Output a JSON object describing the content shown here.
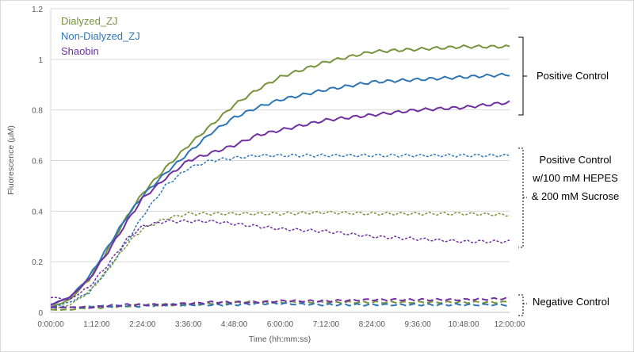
{
  "chart_data": {
    "type": "line",
    "title": "",
    "xlabel": "Time (hh:mm:ss)",
    "ylabel": "Fluorescence (µM)",
    "xlim_hours": [
      0,
      12
    ],
    "ylim": [
      0,
      1.2
    ],
    "x_tick_labels": [
      "0:00:00",
      "1:12:00",
      "2:24:00",
      "3:36:00",
      "4:48:00",
      "6:00:00",
      "7:12:00",
      "8:24:00",
      "9:36:00",
      "10:48:00",
      "12:00:00"
    ],
    "y_ticks": [
      0,
      0.2,
      0.4,
      0.6,
      0.8,
      1,
      1.2
    ],
    "y_tick_labels": [
      "0",
      "0.2",
      "0.4",
      "0.6",
      "0.8",
      "1",
      "1.2"
    ],
    "grid": "horizontal",
    "legend": {
      "placement": "top-left",
      "entries": [
        {
          "label": "Dialyzed_ZJ",
          "color": "#77933C"
        },
        {
          "label": "Non-Dialyzed_ZJ",
          "color": "#2E75B6"
        },
        {
          "label": "Shaobin",
          "color": "#7030A0"
        }
      ]
    },
    "x_hours": [
      0,
      0.5,
      1,
      1.5,
      2,
      2.4,
      3,
      3.6,
      4.2,
      4.8,
      5.4,
      6,
      7.2,
      8.4,
      9.6,
      10.8,
      12
    ],
    "series": [
      {
        "name": "Dialyzed_ZJ - Positive Control",
        "group": "positive",
        "style": "solid",
        "color": "#77933C",
        "values": [
          0.02,
          0.05,
          0.13,
          0.25,
          0.38,
          0.47,
          0.57,
          0.66,
          0.74,
          0.82,
          0.88,
          0.93,
          0.99,
          1.03,
          1.04,
          1.05,
          1.05
        ]
      },
      {
        "name": "Non-Dialyzed_ZJ - Positive Control",
        "group": "positive",
        "style": "solid",
        "color": "#2E75B6",
        "values": [
          0.03,
          0.06,
          0.14,
          0.26,
          0.38,
          0.46,
          0.55,
          0.63,
          0.71,
          0.77,
          0.81,
          0.84,
          0.88,
          0.91,
          0.92,
          0.93,
          0.94
        ]
      },
      {
        "name": "Shaobin - Positive Control",
        "group": "positive",
        "style": "solid",
        "color": "#7030A0",
        "values": [
          0.03,
          0.06,
          0.13,
          0.24,
          0.36,
          0.45,
          0.53,
          0.6,
          0.63,
          0.66,
          0.7,
          0.72,
          0.76,
          0.78,
          0.8,
          0.81,
          0.83
        ]
      },
      {
        "name": "Non-Dialyzed_ZJ - HEPES/Sucrose",
        "group": "hepes",
        "style": "dotted",
        "color": "#2E75B6",
        "values": [
          0.02,
          0.04,
          0.08,
          0.17,
          0.28,
          0.38,
          0.5,
          0.57,
          0.6,
          0.61,
          0.62,
          0.62,
          0.62,
          0.62,
          0.62,
          0.62,
          0.62
        ]
      },
      {
        "name": "Dialyzed_ZJ - HEPES/Sucrose",
        "group": "hepes",
        "style": "dotted",
        "color": "#77933C",
        "values": [
          0.01,
          0.03,
          0.08,
          0.17,
          0.27,
          0.33,
          0.37,
          0.39,
          0.39,
          0.39,
          0.39,
          0.39,
          0.395,
          0.39,
          0.39,
          0.39,
          0.385
        ]
      },
      {
        "name": "Shaobin - HEPES/Sucrose",
        "group": "hepes",
        "style": "dotted",
        "color": "#7030A0",
        "values": [
          0.06,
          0.05,
          0.1,
          0.19,
          0.29,
          0.34,
          0.36,
          0.36,
          0.36,
          0.35,
          0.34,
          0.33,
          0.32,
          0.3,
          0.29,
          0.28,
          0.28
        ]
      },
      {
        "name": "Dialyzed_ZJ - Negative Control",
        "group": "negative",
        "style": "dashed",
        "color": "#77933C",
        "values": [
          0.01,
          0.01,
          0.02,
          0.02,
          0.025,
          0.03,
          0.03,
          0.03,
          0.035,
          0.04,
          0.04,
          0.04,
          0.04,
          0.04,
          0.04,
          0.04,
          0.04
        ]
      },
      {
        "name": "Non-Dialyzed_ZJ - Negative Control",
        "group": "negative",
        "style": "dashed",
        "color": "#2E75B6",
        "values": [
          0.02,
          0.02,
          0.02,
          0.025,
          0.025,
          0.025,
          0.03,
          0.03,
          0.03,
          0.03,
          0.035,
          0.035,
          0.03,
          0.03,
          0.03,
          0.03,
          0.03
        ]
      },
      {
        "name": "Shaobin - Negative Control",
        "group": "negative",
        "style": "dashed",
        "color": "#7030A0",
        "values": [
          0.02,
          0.02,
          0.02,
          0.025,
          0.03,
          0.03,
          0.03,
          0.035,
          0.04,
          0.04,
          0.04,
          0.045,
          0.045,
          0.05,
          0.05,
          0.05,
          0.055
        ]
      }
    ],
    "annotations": {
      "positive": [
        "Positive Control"
      ],
      "hepes": [
        "Positive Control",
        "w/100 mM HEPES",
        "& 200 mM Sucrose"
      ],
      "negative": [
        "Negative Control"
      ]
    }
  }
}
